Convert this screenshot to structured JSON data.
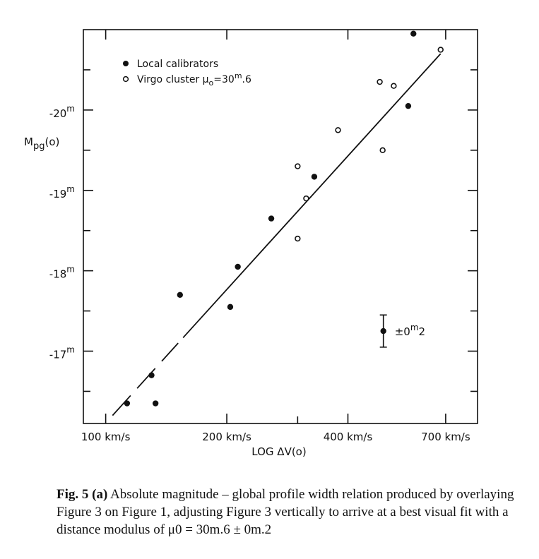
{
  "chart_data": {
    "type": "scatter",
    "xlabel": "LOG ΔV(o)",
    "ylabel": "Mpg(o)",
    "x_scale": "log",
    "xlim": [
      88,
      840
    ],
    "ylim": [
      -16.1,
      -21.0
    ],
    "x_ticks": [
      100,
      200,
      400,
      700
    ],
    "x_tick_labels": [
      "100 km/s",
      "200 km/s",
      "400 km/s",
      "700 km/s"
    ],
    "x_minor_ticks": [
      300
    ],
    "y_ticks": [
      -17,
      -18,
      -19,
      -20
    ],
    "y_tick_labels": [
      "-17m",
      "-18m",
      "-19m",
      "-20m"
    ],
    "y_minor_ticks": [
      -16.5,
      -17.5,
      -18.5,
      -19.5,
      -20.5
    ],
    "legend": [
      {
        "name": "Local calibrators",
        "marker": "filled-circle"
      },
      {
        "name": "Virgo cluster μo=30m.6",
        "marker": "open-circle"
      }
    ],
    "legend_position": "top-left",
    "series": [
      {
        "name": "Local calibrators",
        "marker": "filled",
        "points": [
          [
            113,
            -16.35
          ],
          [
            130,
            -16.7
          ],
          [
            133,
            -16.35
          ],
          [
            153,
            -17.7
          ],
          [
            204,
            -17.55
          ],
          [
            213,
            -18.05
          ],
          [
            258,
            -18.65
          ],
          [
            330,
            -19.17
          ],
          [
            582,
            -20.95
          ],
          [
            565,
            -20.05
          ]
        ]
      },
      {
        "name": "Virgo cluster μo=30m.6",
        "marker": "open",
        "points": [
          [
            300,
            -18.4
          ],
          [
            300,
            -19.3
          ],
          [
            315,
            -18.9
          ],
          [
            378,
            -19.75
          ],
          [
            480,
            -20.35
          ],
          [
            520,
            -20.3
          ],
          [
            488,
            -19.5
          ],
          [
            680,
            -20.75
          ]
        ]
      }
    ],
    "fit_line": {
      "x": [
        104,
        680
      ],
      "y": [
        -16.2,
        -20.7
      ],
      "style": "solid, dashed near lower end"
    },
    "error_bar": {
      "x": 490,
      "y": -17.25,
      "err": 0.2,
      "label": "±0m2"
    },
    "caption": {
      "bold": "Fig. 5 (a)",
      "text": "Absolute magnitude – global profile width relation produced by overlaying Figure 3 on Figure 1, adjusting Figure 3 vertically to arrive at a best visual fit with a distance modulus of μ0 = 30m.6 ± 0m.2"
    }
  }
}
